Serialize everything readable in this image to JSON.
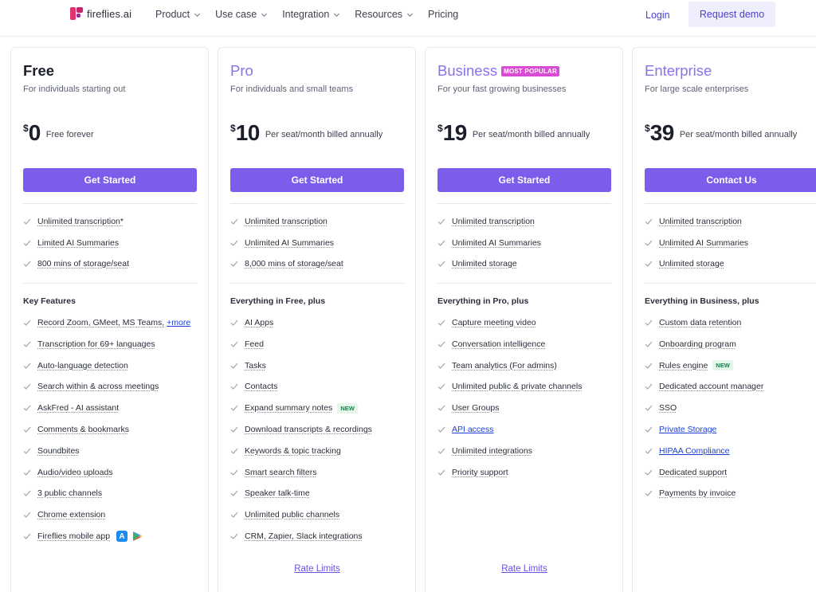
{
  "nav": {
    "logo": "fireflies.ai",
    "menu": [
      {
        "label": "Product",
        "dropdown": true
      },
      {
        "label": "Use case",
        "dropdown": true
      },
      {
        "label": "Integration",
        "dropdown": true
      },
      {
        "label": "Resources",
        "dropdown": true
      },
      {
        "label": "Pricing",
        "dropdown": false
      }
    ],
    "login": "Login",
    "request_demo": "Request demo"
  },
  "colors": {
    "accent": "#7b5ceb",
    "plan_purple": "#8b6ff0",
    "popular_badge": "#d94bd3",
    "link": "#1d3fd6",
    "new_badge_text": "#1a7f4a"
  },
  "plans": [
    {
      "name": "Free",
      "description": "For individuals starting out",
      "currency": "$",
      "amount": "0",
      "price_note": "Free forever",
      "cta": "Get Started",
      "basics": [
        {
          "text": "Unlimited transcription*"
        },
        {
          "text": "Limited AI Summaries"
        },
        {
          "text": "800 mins of storage/seat"
        }
      ],
      "section_title": "Key Features",
      "features": [
        {
          "text": "Record Zoom, GMeet, MS Teams,",
          "more": "+more"
        },
        {
          "text": "Transcription for 69+ languages"
        },
        {
          "text": "Auto-language detection"
        },
        {
          "text": "Search within & across meetings"
        },
        {
          "text": "AskFred - AI assistant"
        },
        {
          "text": "Comments & bookmarks"
        },
        {
          "text": "Soundbites"
        },
        {
          "text": "Audio/video uploads"
        },
        {
          "text": "3 public channels"
        },
        {
          "text": "Chrome extension"
        },
        {
          "text": "Fireflies mobile app",
          "icons": [
            "app-store-icon",
            "google-play-icon"
          ]
        }
      ]
    },
    {
      "name": "Pro",
      "description": "For individuals and small teams",
      "currency": "$",
      "amount": "10",
      "price_note": "Per seat/month billed annually",
      "cta": "Get Started",
      "basics": [
        {
          "text": "Unlimited transcription"
        },
        {
          "text": "Unlimited AI Summaries"
        },
        {
          "text": "8,000 mins of storage/seat"
        }
      ],
      "section_title": "Everything in Free, plus",
      "features": [
        {
          "text": "AI Apps"
        },
        {
          "text": "Feed"
        },
        {
          "text": "Tasks"
        },
        {
          "text": "Contacts"
        },
        {
          "text": "Expand summary notes",
          "badge": "NEW"
        },
        {
          "text": "Download transcripts & recordings"
        },
        {
          "text": "Keywords & topic tracking"
        },
        {
          "text": "Smart search filters"
        },
        {
          "text": "Speaker talk-time"
        },
        {
          "text": "Unlimited public channels"
        },
        {
          "text": "CRM, Zapier, Slack integrations"
        }
      ],
      "rate_limits": "Rate Limits"
    },
    {
      "name": "Business",
      "popular": "MOST POPULAR",
      "description": "For your fast growing businesses",
      "currency": "$",
      "amount": "19",
      "price_note": "Per seat/month billed annually",
      "cta": "Get Started",
      "basics": [
        {
          "text": "Unlimited transcription"
        },
        {
          "text": "Unlimited AI Summaries"
        },
        {
          "text": "Unlimited storage"
        }
      ],
      "section_title": "Everything in Pro, plus",
      "features": [
        {
          "text": "Capture meeting video"
        },
        {
          "text": "Conversation intelligence"
        },
        {
          "text": "Team analytics (For admins)"
        },
        {
          "text": "Unlimited public & private channels"
        },
        {
          "text": "User Groups"
        },
        {
          "text": "API access",
          "link": true
        },
        {
          "text": "Unlimited integrations"
        },
        {
          "text": "Priority support"
        }
      ],
      "rate_limits": "Rate Limits"
    },
    {
      "name": "Enterprise",
      "description": "For large scale enterprises",
      "currency": "$",
      "amount": "39",
      "price_note": "Per seat/month billed annually",
      "cta": "Contact Us",
      "basics": [
        {
          "text": "Unlimited transcription"
        },
        {
          "text": "Unlimited AI Summaries"
        },
        {
          "text": "Unlimited storage"
        }
      ],
      "section_title": "Everything in Business, plus",
      "features": [
        {
          "text": "Custom data retention"
        },
        {
          "text": "Onboarding program"
        },
        {
          "text": "Rules engine",
          "badge": "NEW"
        },
        {
          "text": "Dedicated account manager"
        },
        {
          "text": "SSO"
        },
        {
          "text": "Private Storage",
          "link": true
        },
        {
          "text": "HIPAA Compliance",
          "link": true
        },
        {
          "text": "Dedicated support"
        },
        {
          "text": "Payments by invoice"
        }
      ]
    }
  ]
}
